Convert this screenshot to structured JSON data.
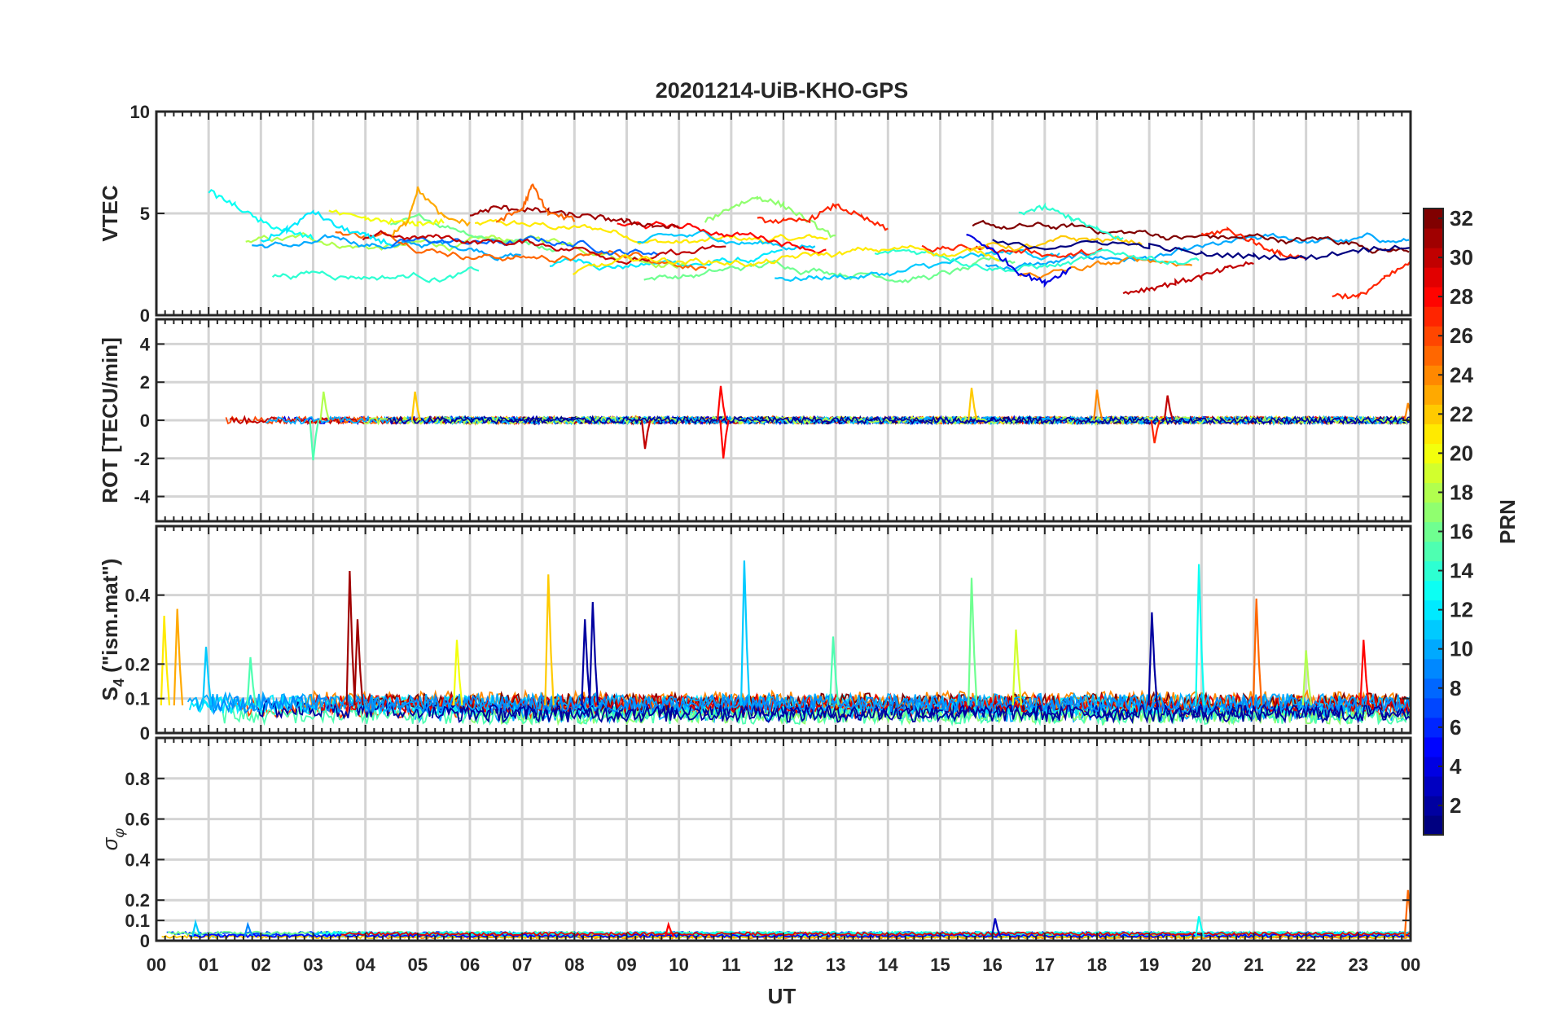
{
  "chart_data": {
    "type": "line",
    "title": "20201214-UiB-KHO-GPS",
    "x_label": "UT",
    "x_range": [
      0,
      24
    ],
    "x_tick_labels": [
      "00",
      "01",
      "02",
      "03",
      "04",
      "05",
      "06",
      "07",
      "08",
      "09",
      "10",
      "11",
      "12",
      "13",
      "14",
      "15",
      "16",
      "17",
      "18",
      "19",
      "20",
      "21",
      "22",
      "23",
      "00"
    ],
    "colorbar": {
      "label": "PRN",
      "range": [
        1,
        32
      ],
      "ticks": [
        "2",
        "4",
        "6",
        "8",
        "10",
        "12",
        "14",
        "16",
        "18",
        "20",
        "22",
        "24",
        "26",
        "28",
        "30",
        "32"
      ],
      "colormap": "jet"
    },
    "panels": [
      {
        "id": "vtec",
        "ylabel": "VTEC",
        "ylim": [
          0,
          10
        ],
        "yticks": [
          "0",
          "5",
          "10"
        ],
        "yvals": [
          0,
          5,
          10
        ],
        "series_summary": "VTEC traces for all PRNs mostly between 1 and 6 TECU",
        "series": [
          {
            "prn": 13,
            "x": [
              1.0,
              1.5,
              2.0,
              2.5,
              3.0
            ],
            "y": [
              6.1,
              5.4,
              4.6,
              4.1,
              3.8
            ]
          },
          {
            "prn": 12,
            "x": [
              2.0,
              2.5,
              3.0,
              3.5,
              4.0,
              4.5
            ],
            "y": [
              3.6,
              4.2,
              5.1,
              4.3,
              3.9,
              3.5
            ]
          },
          {
            "prn": 20,
            "x": [
              3.3,
              4.0,
              4.5,
              5.0,
              5.5
            ],
            "y": [
              5.1,
              4.7,
              4.6,
              4.5,
              4.6
            ]
          },
          {
            "prn": 23,
            "x": [
              4.5,
              4.8,
              5.0,
              5.5,
              6.0
            ],
            "y": [
              3.9,
              4.6,
              6.2,
              4.8,
              4.5
            ]
          },
          {
            "prn": 31,
            "x": [
              6.0,
              6.5,
              7.0,
              7.5,
              8.0,
              8.5,
              9.0,
              9.5,
              10.0
            ],
            "y": [
              4.9,
              5.3,
              5.2,
              5.1,
              4.9,
              4.8,
              4.6,
              4.4,
              4.3
            ]
          },
          {
            "prn": 25,
            "x": [
              6.5,
              7.0,
              7.2,
              7.5,
              8.0
            ],
            "y": [
              4.6,
              5.2,
              6.4,
              5.0,
              4.7
            ]
          },
          {
            "prn": 17,
            "x": [
              10.5,
              11.0,
              11.5,
              12.0,
              12.5,
              13.0
            ],
            "y": [
              4.6,
              5.3,
              5.8,
              5.4,
              4.6,
              3.8
            ]
          },
          {
            "prn": 27,
            "x": [
              11.5,
              12.0,
              12.5,
              13.0,
              13.5,
              14.0
            ],
            "y": [
              4.7,
              4.6,
              4.7,
              5.4,
              4.8,
              4.2
            ]
          },
          {
            "prn": 14,
            "x": [
              16.5,
              17.0,
              17.5,
              18.0,
              18.5
            ],
            "y": [
              5.0,
              5.3,
              4.8,
              4.2,
              3.7
            ]
          },
          {
            "prn": 4,
            "x": [
              15.5,
              16.0,
              16.5,
              17.0,
              17.5
            ],
            "y": [
              4.0,
              3.2,
              2.1,
              1.6,
              2.3
            ]
          },
          {
            "prn": 30,
            "x": [
              18.5,
              19.0,
              19.5,
              20.0,
              20.5,
              21.0
            ],
            "y": [
              1.1,
              1.3,
              1.6,
              1.9,
              2.3,
              2.6
            ]
          },
          {
            "prn": 27,
            "x": [
              20.0,
              20.5,
              21.0,
              21.5,
              22.0
            ],
            "y": [
              3.9,
              4.2,
              3.6,
              3.0,
              2.8
            ]
          },
          {
            "prn": 27,
            "x": [
              22.5,
              23.0,
              23.5,
              24.0
            ],
            "y": [
              1.0,
              0.9,
              1.8,
              2.6
            ]
          },
          {
            "prn": 1,
            "x": [
              16.0,
              17.0,
              18.0,
              19.0,
              20.0,
              21.0,
              22.0,
              23.0,
              24.0
            ],
            "y": [
              3.6,
              3.3,
              3.6,
              3.4,
              3.0,
              2.9,
              2.8,
              3.2,
              3.4
            ]
          }
        ]
      },
      {
        "id": "rot",
        "ylabel": "ROT [TECU/min]",
        "ylim": [
          -5.3,
          5.3
        ],
        "yticks": [
          "-4",
          "-2",
          "0",
          "2",
          "4"
        ],
        "yvals": [
          -4,
          -2,
          0,
          2,
          4
        ],
        "series_summary": "Rate of TEC fluctuations around 0, spikes up to about ±2 TECU/min",
        "spikes": [
          {
            "x": 3.0,
            "y": -2.1,
            "prn": 15
          },
          {
            "x": 3.2,
            "y": 1.5,
            "prn": 18
          },
          {
            "x": 4.95,
            "y": 1.5,
            "prn": 22
          },
          {
            "x": 9.35,
            "y": -1.5,
            "prn": 30
          },
          {
            "x": 10.8,
            "y": 1.8,
            "prn": 28
          },
          {
            "x": 10.85,
            "y": -2.0,
            "prn": 28
          },
          {
            "x": 15.6,
            "y": 1.7,
            "prn": 22
          },
          {
            "x": 18.0,
            "y": 1.6,
            "prn": 24
          },
          {
            "x": 19.35,
            "y": 1.3,
            "prn": 30
          },
          {
            "x": 19.1,
            "y": -1.2,
            "prn": 27
          },
          {
            "x": 23.95,
            "y": 0.9,
            "prn": 24
          }
        ]
      },
      {
        "id": "s4",
        "ylabel": "S4 (\"ism.mat\")",
        "ylabel_main": "S",
        "ylabel_sub": "4",
        "ylabel_rest": " (\"ism.mat\")",
        "ylim": [
          0,
          0.6
        ],
        "yticks": [
          "0",
          "0.1",
          "0.2",
          "0.4"
        ],
        "yvals": [
          0,
          0.1,
          0.2,
          0.4
        ],
        "series_summary": "Amplitude scintillation index mostly 0.05-0.15 with spikes",
        "spikes": [
          {
            "x": 0.15,
            "y": 0.34,
            "prn": 21
          },
          {
            "x": 0.4,
            "y": 0.36,
            "prn": 23
          },
          {
            "x": 0.95,
            "y": 0.25,
            "prn": 11
          },
          {
            "x": 1.8,
            "y": 0.22,
            "prn": 15
          },
          {
            "x": 3.7,
            "y": 0.47,
            "prn": 31
          },
          {
            "x": 3.85,
            "y": 0.33,
            "prn": 31
          },
          {
            "x": 5.75,
            "y": 0.27,
            "prn": 20
          },
          {
            "x": 7.5,
            "y": 0.46,
            "prn": 22
          },
          {
            "x": 8.2,
            "y": 0.33,
            "prn": 2
          },
          {
            "x": 8.35,
            "y": 0.38,
            "prn": 2
          },
          {
            "x": 11.25,
            "y": 0.5,
            "prn": 11
          },
          {
            "x": 12.95,
            "y": 0.28,
            "prn": 15
          },
          {
            "x": 15.6,
            "y": 0.45,
            "prn": 16
          },
          {
            "x": 16.45,
            "y": 0.3,
            "prn": 19
          },
          {
            "x": 19.05,
            "y": 0.35,
            "prn": 2
          },
          {
            "x": 19.95,
            "y": 0.49,
            "prn": 13
          },
          {
            "x": 21.05,
            "y": 0.39,
            "prn": 25
          },
          {
            "x": 22.0,
            "y": 0.24,
            "prn": 18
          },
          {
            "x": 23.1,
            "y": 0.27,
            "prn": 28
          }
        ]
      },
      {
        "id": "sigma_phi",
        "ylabel": "σ φ",
        "ylabel_main": "σ",
        "ylabel_sub": "φ",
        "ylim": [
          0,
          1.0
        ],
        "yticks": [
          "0",
          "0.1",
          "0.2",
          "0.4",
          "0.6",
          "0.8"
        ],
        "yvals": [
          0,
          0.1,
          0.2,
          0.4,
          0.6,
          0.8
        ],
        "series_summary": "Phase scintillation index near 0.01-0.05, small spikes",
        "spikes": [
          {
            "x": 0.75,
            "y": 0.09,
            "prn": 11
          },
          {
            "x": 1.75,
            "y": 0.08,
            "prn": 9
          },
          {
            "x": 9.8,
            "y": 0.08,
            "prn": 28
          },
          {
            "x": 16.05,
            "y": 0.11,
            "prn": 3
          },
          {
            "x": 19.95,
            "y": 0.12,
            "prn": 13
          },
          {
            "x": 23.95,
            "y": 0.25,
            "prn": 25
          }
        ]
      }
    ]
  }
}
